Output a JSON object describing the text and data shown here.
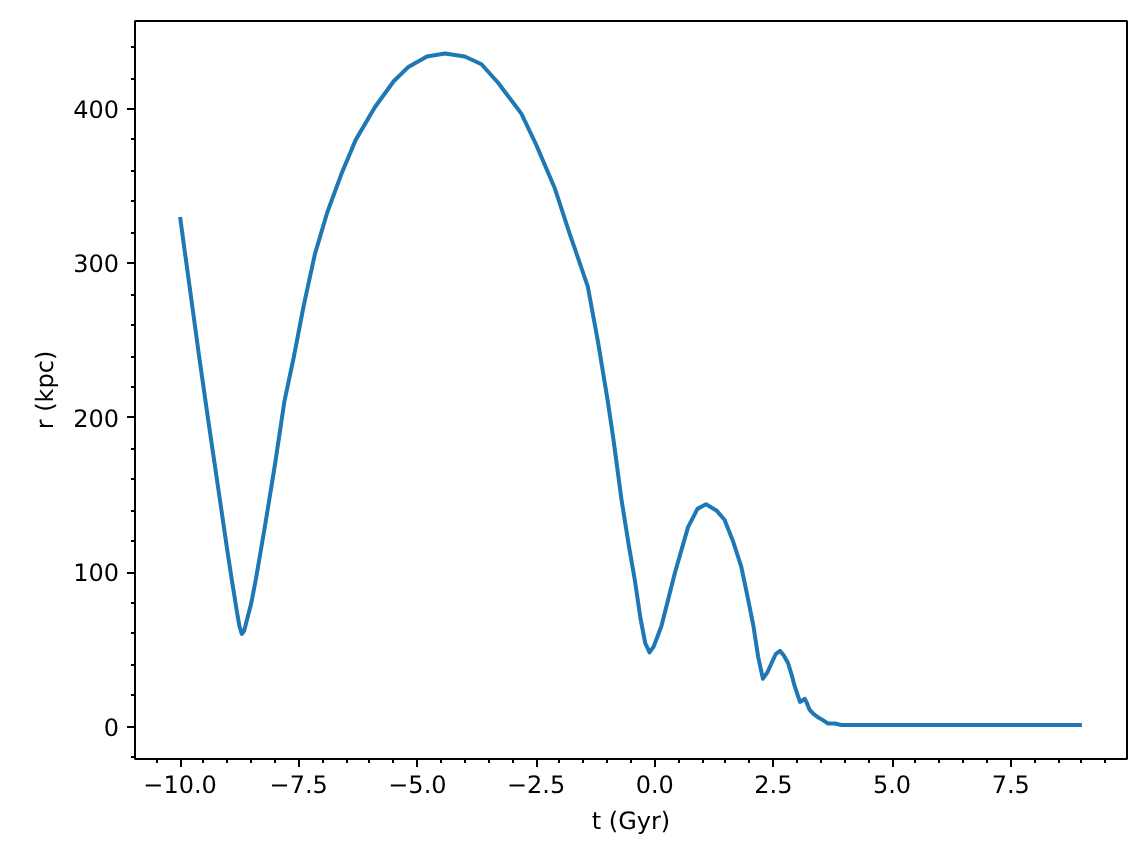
{
  "chart_data": {
    "type": "line",
    "xlabel": "t (Gyr)",
    "ylabel": "r (kpc)",
    "x": [
      -10.0,
      -9.8,
      -9.6,
      -9.4,
      -9.2,
      -9.0,
      -8.9,
      -8.8,
      -8.75,
      -8.7,
      -8.65,
      -8.6,
      -8.5,
      -8.4,
      -8.2,
      -8.0,
      -7.8,
      -7.6,
      -7.4,
      -7.16,
      -6.9,
      -6.6,
      -6.3,
      -5.9,
      -5.5,
      -5.2,
      -4.8,
      -4.42,
      -4.0,
      -3.65,
      -3.3,
      -2.81,
      -2.5,
      -2.11,
      -1.8,
      -1.41,
      -1.2,
      -0.99,
      -0.87,
      -0.7,
      -0.55,
      -0.42,
      -0.3,
      -0.2,
      -0.11,
      -0.02,
      0.14,
      0.42,
      0.7,
      0.9,
      1.08,
      1.3,
      1.47,
      1.65,
      1.82,
      1.95,
      2.08,
      2.18,
      2.28,
      2.37,
      2.46,
      2.55,
      2.64,
      2.72,
      2.81,
      2.88,
      2.95,
      3.06,
      3.12,
      3.16,
      3.21,
      3.26,
      3.35,
      3.44,
      3.55,
      3.65,
      3.8,
      3.93,
      5.0,
      6.0,
      7.0,
      8.0,
      9.0
    ],
    "series": [
      {
        "color": "#1f77b4",
        "values": [
          330,
          285,
          240,
          197,
          155,
          113,
          93,
          74,
          65,
          60,
          62,
          68,
          80,
          96,
          132,
          170,
          211,
          240,
          272,
          306,
          333,
          358,
          380,
          401,
          418,
          427,
          434,
          436,
          434,
          429,
          417,
          397,
          377,
          349,
          320,
          285,
          250,
          211,
          186,
          147,
          118,
          95,
          70,
          54,
          48,
          52,
          65,
          99,
          129,
          141,
          144,
          140,
          134,
          120,
          104,
          85,
          65,
          45,
          31,
          35,
          41,
          47,
          49,
          46,
          41,
          34,
          26,
          16,
          17,
          18,
          15,
          11,
          8,
          6,
          4,
          2,
          2,
          1,
          1,
          1,
          1,
          1,
          1
        ]
      }
    ],
    "xlim": [
      -10.95,
      9.95
    ],
    "ylim": [
      -21,
      457
    ],
    "xticks": [
      {
        "value": -10.5,
        "label": null
      },
      {
        "value": -10,
        "label": "−10.0"
      },
      {
        "value": -9.5,
        "label": null
      },
      {
        "value": -9,
        "label": null
      },
      {
        "value": -8.5,
        "label": null
      },
      {
        "value": -8,
        "label": null
      },
      {
        "value": -7.5,
        "label": "−7.5"
      },
      {
        "value": -7,
        "label": null
      },
      {
        "value": -6.5,
        "label": null
      },
      {
        "value": -6,
        "label": null
      },
      {
        "value": -5.5,
        "label": null
      },
      {
        "value": -5,
        "label": "−5.0"
      },
      {
        "value": -4.5,
        "label": null
      },
      {
        "value": -4,
        "label": null
      },
      {
        "value": -3.5,
        "label": null
      },
      {
        "value": -3,
        "label": null
      },
      {
        "value": -2.5,
        "label": "−2.5"
      },
      {
        "value": -2,
        "label": null
      },
      {
        "value": -1.5,
        "label": null
      },
      {
        "value": -1,
        "label": null
      },
      {
        "value": -0.5,
        "label": null
      },
      {
        "value": 0,
        "label": "0.0"
      },
      {
        "value": 0.5,
        "label": null
      },
      {
        "value": 1,
        "label": null
      },
      {
        "value": 1.5,
        "label": null
      },
      {
        "value": 2,
        "label": null
      },
      {
        "value": 2.5,
        "label": "2.5"
      },
      {
        "value": 3,
        "label": null
      },
      {
        "value": 3.5,
        "label": null
      },
      {
        "value": 4,
        "label": null
      },
      {
        "value": 4.5,
        "label": null
      },
      {
        "value": 5,
        "label": "5.0"
      },
      {
        "value": 5.5,
        "label": null
      },
      {
        "value": 6,
        "label": null
      },
      {
        "value": 6.5,
        "label": null
      },
      {
        "value": 7,
        "label": null
      },
      {
        "value": 7.5,
        "label": "7.5"
      },
      {
        "value": 8,
        "label": null
      },
      {
        "value": 8.5,
        "label": null
      },
      {
        "value": 9,
        "label": null
      },
      {
        "value": 9.5,
        "label": null
      }
    ],
    "yticks": [
      {
        "value": -20,
        "label": null
      },
      0,
      {
        "value": 20,
        "label": null
      },
      {
        "value": 40,
        "label": null
      },
      {
        "value": 60,
        "label": null
      },
      {
        "value": 80,
        "label": null
      },
      100,
      {
        "value": 120,
        "label": null
      },
      {
        "value": 140,
        "label": null
      },
      {
        "value": 160,
        "label": null
      },
      {
        "value": 180,
        "label": null
      },
      200,
      {
        "value": 220,
        "label": null
      },
      {
        "value": 240,
        "label": null
      },
      {
        "value": 260,
        "label": null
      },
      {
        "value": 280,
        "label": null
      },
      300,
      {
        "value": 320,
        "label": null
      },
      {
        "value": 340,
        "label": null
      },
      {
        "value": 360,
        "label": null
      },
      {
        "value": 380,
        "label": null
      },
      400,
      {
        "value": 420,
        "label": null
      },
      {
        "value": 440,
        "label": null
      }
    ],
    "grid": false
  }
}
